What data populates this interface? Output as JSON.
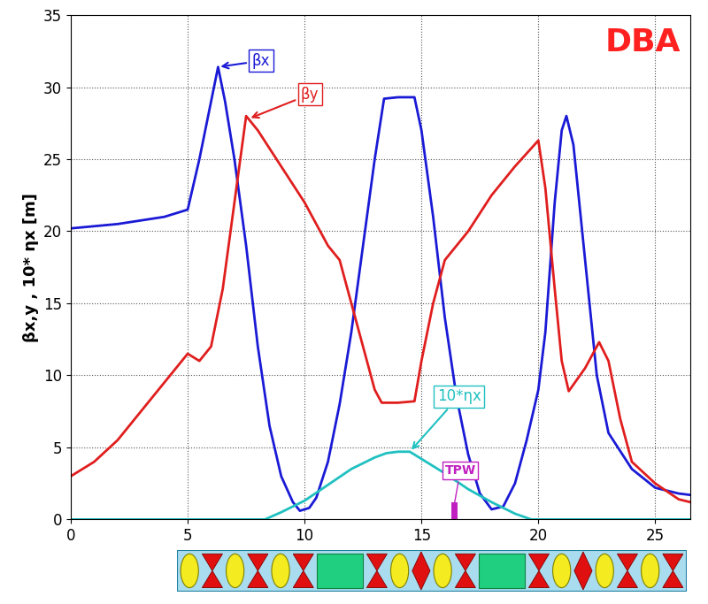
{
  "chart_data": {
    "type": "line",
    "title": "DBA",
    "y_label": "βx,y , 10* ηx [m]",
    "xlim": [
      0,
      26.5
    ],
    "xticks": [
      0,
      5,
      10,
      15,
      20,
      25
    ],
    "ylim": [
      0,
      35
    ],
    "yticks": [
      0,
      5,
      10,
      15,
      20,
      25,
      30,
      35
    ],
    "grid": true,
    "series": [
      {
        "name": "βx",
        "color": "#1a1ad6",
        "label_point": [
          6.3,
          31.4
        ],
        "x": [
          0,
          2,
          4,
          5,
          5.5,
          6,
          6.3,
          6.6,
          7,
          7.5,
          8,
          8.5,
          9,
          9.5,
          9.8,
          10.2,
          10.5,
          11,
          11.5,
          12,
          12.5,
          13,
          13.4,
          14,
          14.7,
          15,
          15.5,
          16,
          16.5,
          17,
          17.5,
          18,
          18.5,
          19,
          19.5,
          20,
          20.3,
          20.7,
          21,
          21.2,
          21.5,
          22,
          22.5,
          23,
          24,
          25,
          26,
          26.5
        ],
        "values": [
          20.2,
          20.5,
          21,
          21.5,
          25,
          29,
          31.4,
          29,
          25,
          19,
          12,
          6.5,
          3,
          1.2,
          0.6,
          0.8,
          1.5,
          4,
          8,
          13,
          19,
          25,
          29.2,
          29.3,
          29.3,
          27,
          21,
          14,
          8.5,
          4.5,
          1.8,
          0.7,
          0.9,
          2.5,
          5.5,
          9,
          13,
          22,
          27,
          28,
          26,
          18,
          10,
          6,
          3.5,
          2.2,
          1.8,
          1.7
        ]
      },
      {
        "name": "βy",
        "color": "#e01e1e",
        "label_point": [
          7.6,
          27.8
        ],
        "x": [
          0,
          1,
          2,
          3,
          4,
          5,
          5.5,
          6,
          6.5,
          7,
          7.5,
          8,
          9,
          10,
          11,
          11.5,
          12,
          12.5,
          13,
          13.3,
          14,
          14.7,
          15,
          15.5,
          16,
          17,
          18,
          19,
          20,
          20.3,
          20.7,
          21,
          21.3,
          22,
          22.6,
          23,
          23.5,
          24,
          25,
          26,
          26.5
        ],
        "values": [
          3,
          4,
          5.5,
          7.5,
          9.5,
          11.5,
          11,
          12,
          16,
          22,
          28,
          27,
          24.5,
          22,
          19,
          18,
          15,
          12,
          9,
          8.1,
          8.1,
          8.2,
          11,
          15,
          18,
          20,
          22.5,
          24.5,
          26.3,
          23,
          16,
          11,
          8.9,
          10.5,
          12.3,
          11,
          7,
          4,
          2.5,
          1.4,
          1.2
        ]
      },
      {
        "name": "10*ηx",
        "color": "#20c0c0",
        "label_point": [
          14.5,
          4.7
        ],
        "x": [
          0,
          8.3,
          9,
          10,
          11,
          12,
          13,
          13.5,
          14,
          14.5,
          15,
          16,
          17,
          18,
          19,
          19.7,
          26.5
        ],
        "values": [
          0,
          0,
          0.5,
          1.3,
          2.4,
          3.5,
          4.3,
          4.6,
          4.7,
          4.7,
          4.2,
          3.2,
          2.1,
          1.2,
          0.4,
          0,
          0
        ]
      }
    ],
    "annotations": [
      {
        "text": "TPW",
        "x": 16.4,
        "y": 0,
        "color": "#c020c0"
      }
    ]
  }
}
